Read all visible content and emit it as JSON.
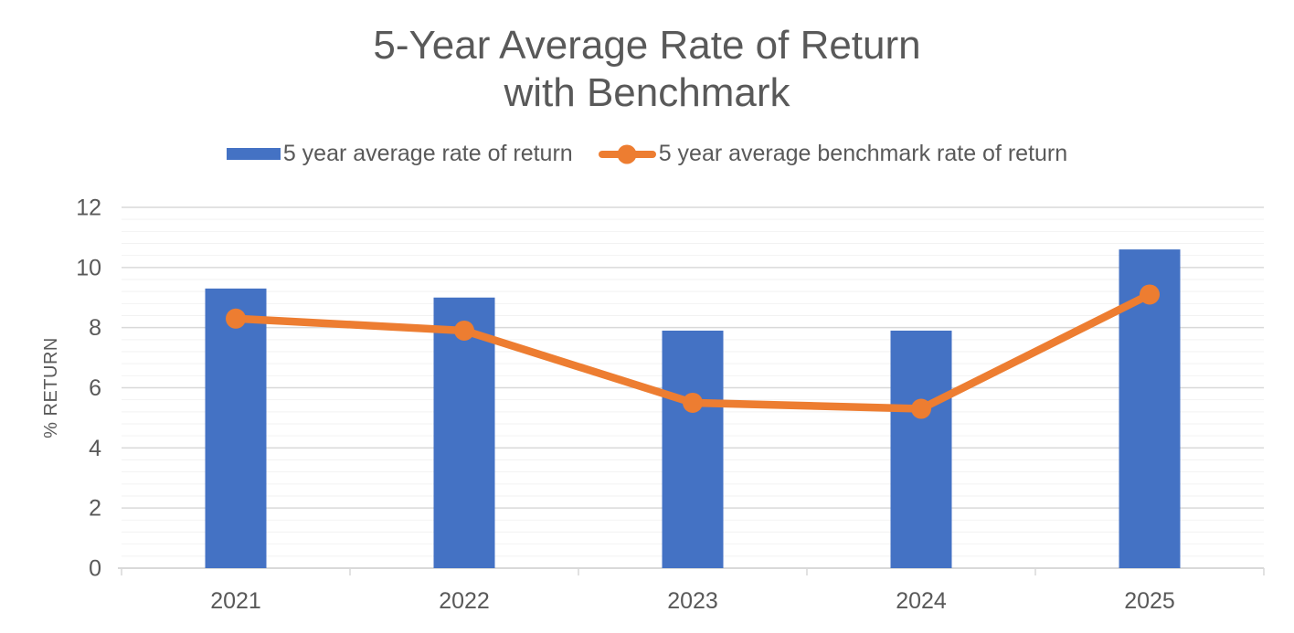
{
  "chart_data": {
    "type": "bar",
    "combo": "bar+line",
    "title": "5-Year Average Rate of Return with Benchmark",
    "title_lines": [
      "5-Year Average Rate of Return",
      "with Benchmark"
    ],
    "categories": [
      "2021",
      "2022",
      "2023",
      "2024",
      "2025"
    ],
    "series": [
      {
        "name": "5 year average rate of return",
        "type": "bar",
        "color": "#4472C4",
        "values": [
          9.3,
          9.0,
          7.9,
          7.9,
          10.6
        ]
      },
      {
        "name": "5 year average benchmark rate of return",
        "type": "line",
        "color": "#ED7D31",
        "values": [
          8.3,
          7.9,
          5.5,
          5.3,
          9.1
        ]
      }
    ],
    "xlabel": "",
    "ylabel": "% RETURN",
    "ylim": [
      0,
      12
    ],
    "y_major_ticks": [
      0,
      2,
      4,
      6,
      8,
      10,
      12
    ],
    "y_minor_unit": 0.4,
    "grid": "horizontal major + minor",
    "legend_position": "top-center"
  },
  "colors": {
    "bar_fill": "#4472C4",
    "line_stroke": "#ED7D31",
    "text": "#595959",
    "major_gridline": "#D9D9D9",
    "minor_gridline": "#F2F2F2",
    "axis_line": "#D9D9D9",
    "background": "#FFFFFF"
  }
}
